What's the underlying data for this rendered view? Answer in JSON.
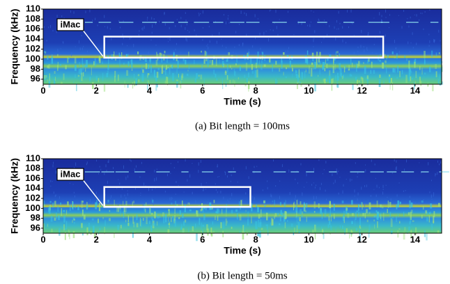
{
  "chart_data": [
    {
      "type": "spectrogram",
      "caption": "(a)  Bit length = 100ms",
      "xlabel": "Time (s)",
      "ylabel": "Frequency (kHz)",
      "annotation": "iMac",
      "highlight": {
        "x": [
          2.3,
          12.8
        ],
        "y": [
          100.3,
          104.5
        ]
      },
      "xlim": [
        0,
        15
      ],
      "ylim": [
        95,
        110
      ],
      "xticks": [
        0,
        2,
        4,
        6,
        8,
        10,
        12,
        14
      ],
      "yticks": [
        96,
        98,
        100,
        102,
        104,
        106,
        108,
        110
      ]
    },
    {
      "type": "spectrogram",
      "caption": "(b)  Bit length = 50ms",
      "xlabel": "Time (s)",
      "ylabel": "Frequency (kHz)",
      "annotation": "iMac",
      "highlight": {
        "x": [
          2.3,
          7.8
        ],
        "y": [
          100.3,
          104.3
        ]
      },
      "xlim": [
        0,
        15
      ],
      "ylim": [
        95,
        110
      ],
      "xticks": [
        0,
        2,
        4,
        6,
        8,
        10,
        12,
        14
      ],
      "yticks": [
        96,
        98,
        100,
        102,
        104,
        106,
        108,
        110
      ]
    }
  ]
}
